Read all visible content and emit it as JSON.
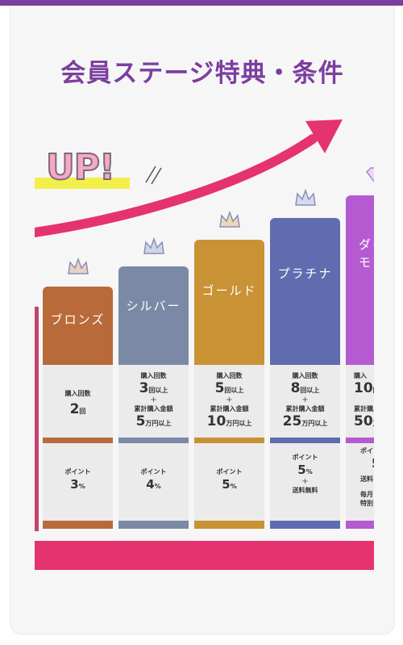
{
  "title": "会員ステージ特典・条件",
  "up_text": "UP!",
  "colors": {
    "brand_purple": "#7b3fa0",
    "arrow_pink": "#e5336f",
    "bronze": "#b86a3a",
    "silver": "#7a8aa6",
    "gold": "#c89235",
    "platinum": "#5f6db0",
    "diamond": "#b45bd2"
  },
  "stages": [
    {
      "name": "ブロンズ",
      "cond_label": "購入回数",
      "cond_value": "2",
      "cond_unit": "回",
      "benefit_label": "ポイント",
      "benefit_value": "3",
      "benefit_unit": "%"
    },
    {
      "name": "シルバー",
      "cond_label": "購入回数",
      "cond_value": "3",
      "cond_unit": "回以上",
      "plus": "+",
      "amount_label": "累計購入金額",
      "amount_value": "5",
      "amount_unit": "万円以上",
      "benefit_label": "ポイント",
      "benefit_value": "4",
      "benefit_unit": "%"
    },
    {
      "name": "ゴールド",
      "cond_label": "購入回数",
      "cond_value": "5",
      "cond_unit": "回以上",
      "plus": "+",
      "amount_label": "累計購入金額",
      "amount_value": "10",
      "amount_unit": "万円以上",
      "benefit_label": "ポイント",
      "benefit_value": "5",
      "benefit_unit": "%"
    },
    {
      "name": "プラチナ",
      "cond_label": "購入回数",
      "cond_value": "8",
      "cond_unit": "回以上",
      "plus": "+",
      "amount_label": "累計購入金額",
      "amount_value": "25",
      "amount_unit": "万円以上",
      "benefit_label": "ポイント",
      "benefit_value": "5",
      "benefit_unit": "%",
      "benefit_plus": "+",
      "benefit_extra": "送料無料"
    },
    {
      "name": "ダイヤモンド",
      "name_line1": "ダイ",
      "name_line2": "モン",
      "cond_label": "購入",
      "cond_value": "10",
      "cond_unit": "回",
      "plus": "+",
      "amount_label": "累計購入",
      "amount_value": "50",
      "amount_unit": "万",
      "benefit_label": "ポイ",
      "benefit_value": "5",
      "benefit_extra": "送料",
      "benefit_extra2": "毎月",
      "benefit_extra3": "特別ク"
    }
  ]
}
